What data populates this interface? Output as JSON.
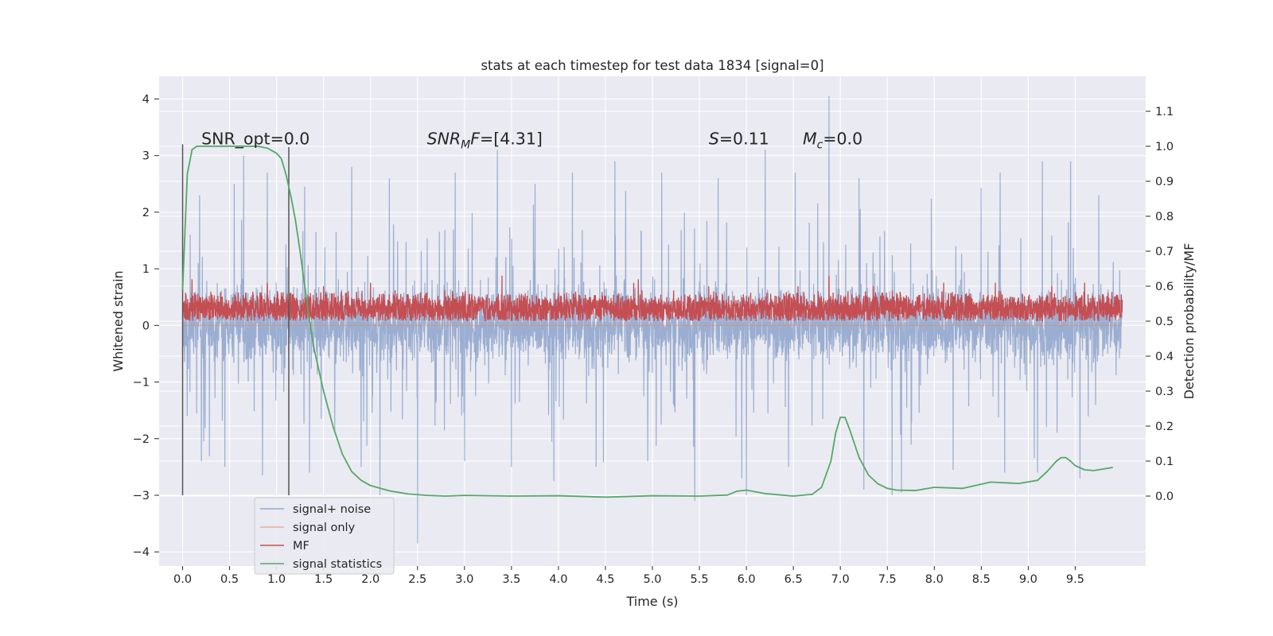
{
  "chart_data": {
    "type": "line",
    "title": "stats at each timestep for test data 1834 [signal=0]",
    "xlabel": "Time (s)",
    "ylabel_left": "Whitened strain",
    "ylabel_right": "Detection probability/MF",
    "xlim": [
      -0.25,
      10.25
    ],
    "ylim_left": [
      -4.25,
      4.4
    ],
    "ylim_right": [
      -0.2,
      1.2
    ],
    "x_ticks": [
      0.0,
      0.5,
      1.0,
      1.5,
      2.0,
      2.5,
      3.0,
      3.5,
      4.0,
      4.5,
      5.0,
      5.5,
      6.0,
      6.5,
      7.0,
      7.5,
      8.0,
      8.5,
      9.0,
      9.5
    ],
    "x_tick_labels": [
      "0.0",
      "0.5",
      "1.0",
      "1.5",
      "2.0",
      "2.5",
      "3.0",
      "3.5",
      "4.0",
      "4.5",
      "5.0",
      "5.5",
      "6.0",
      "6.5",
      "7.0",
      "7.5",
      "8.0",
      "8.5",
      "9.0",
      "9.5"
    ],
    "y_left_ticks": [
      -4,
      -3,
      -2,
      -1,
      0,
      1,
      2,
      3,
      4
    ],
    "y_left_tick_labels": [
      "−4",
      "−3",
      "−2",
      "−1",
      "0",
      "1",
      "2",
      "3",
      "4"
    ],
    "y_right_ticks": [
      0.0,
      0.1,
      0.2,
      0.3,
      0.4,
      0.5,
      0.6,
      0.7,
      0.8,
      0.9,
      1.0,
      1.1
    ],
    "y_right_tick_labels": [
      "0.0",
      "0.1",
      "0.2",
      "0.3",
      "0.4",
      "0.5",
      "0.6",
      "0.7",
      "0.8",
      "0.9",
      "1.0",
      "1.1"
    ],
    "grid": true,
    "legend_position": "lower-left",
    "annotations": [
      {
        "label": "SNR_opt=0.0",
        "x": 0.2,
        "y": 3.2
      },
      {
        "label": "SNR_MF=[4.31]",
        "x": 2.6,
        "y": 3.2
      },
      {
        "label": "S=0.11",
        "x": 5.6,
        "y": 3.2
      },
      {
        "label": "M_c=0.0",
        "x": 6.6,
        "y": 3.2
      }
    ],
    "vertical_markers": [
      {
        "x": 0.0,
        "y_range": [
          -3.0,
          3.2
        ]
      },
      {
        "x": 1.13,
        "y_range": [
          -3.0,
          3.15
        ]
      }
    ],
    "series": [
      {
        "name": "signal+ noise",
        "axis": "left",
        "color": "#4c72b0",
        "typical_range": [
          -1.3,
          1.3
        ],
        "peaks": [
          {
            "x": 0.08,
            "y": 1.6
          },
          {
            "x": 0.18,
            "y": 2.3
          },
          {
            "x": 0.55,
            "y": 2.5
          },
          {
            "x": 0.65,
            "y": 3.0
          },
          {
            "x": 0.9,
            "y": 2.7
          },
          {
            "x": 1.3,
            "y": 2.45
          },
          {
            "x": 1.8,
            "y": 2.8
          },
          {
            "x": 2.2,
            "y": 2.6
          },
          {
            "x": 2.5,
            "y": 2.8
          },
          {
            "x": 2.9,
            "y": 2.7
          },
          {
            "x": 3.35,
            "y": 3.1
          },
          {
            "x": 3.75,
            "y": 2.5
          },
          {
            "x": 4.15,
            "y": 2.7
          },
          {
            "x": 4.6,
            "y": 2.9
          },
          {
            "x": 5.1,
            "y": 2.7
          },
          {
            "x": 5.7,
            "y": 2.6
          },
          {
            "x": 6.2,
            "y": 3.1
          },
          {
            "x": 6.52,
            "y": 2.7
          },
          {
            "x": 6.88,
            "y": 4.05
          },
          {
            "x": 7.2,
            "y": 2.6
          },
          {
            "x": 7.65,
            "y": 2.9
          },
          {
            "x": 8.2,
            "y": 3.0
          },
          {
            "x": 8.7,
            "y": 2.7
          },
          {
            "x": 9.15,
            "y": 2.9
          },
          {
            "x": 9.45,
            "y": 2.9
          },
          {
            "x": 9.75,
            "y": 2.3
          }
        ],
        "troughs": [
          {
            "x": 0.05,
            "y": -1.6
          },
          {
            "x": 0.2,
            "y": -2.4
          },
          {
            "x": 0.45,
            "y": -2.5
          },
          {
            "x": 0.85,
            "y": -2.65
          },
          {
            "x": 1.35,
            "y": -2.6
          },
          {
            "x": 1.9,
            "y": -2.5
          },
          {
            "x": 2.1,
            "y": -3.0
          },
          {
            "x": 2.5,
            "y": -3.85
          },
          {
            "x": 3.0,
            "y": -2.4
          },
          {
            "x": 3.5,
            "y": -2.5
          },
          {
            "x": 3.95,
            "y": -2.75
          },
          {
            "x": 4.4,
            "y": -2.5
          },
          {
            "x": 4.95,
            "y": -2.4
          },
          {
            "x": 5.45,
            "y": -3.1
          },
          {
            "x": 5.95,
            "y": -2.7
          },
          {
            "x": 6.0,
            "y": -3.0
          },
          {
            "x": 6.45,
            "y": -2.5
          },
          {
            "x": 7.25,
            "y": -2.9
          },
          {
            "x": 7.55,
            "y": -3.0
          },
          {
            "x": 7.65,
            "y": -2.95
          },
          {
            "x": 8.2,
            "y": -2.55
          },
          {
            "x": 8.75,
            "y": -2.6
          },
          {
            "x": 9.1,
            "y": -2.6
          },
          {
            "x": 9.55,
            "y": -2.7
          }
        ]
      },
      {
        "name": "signal only",
        "axis": "left",
        "color": "#dd8452",
        "x": [
          0.0,
          10.0
        ],
        "values": [
          0.0,
          0.0
        ]
      },
      {
        "name": "MF",
        "axis": "right",
        "color": "#c44e52",
        "typical_range": [
          0.5,
          0.59
        ],
        "peaks": [
          {
            "x": 0.1,
            "y": 0.62
          },
          {
            "x": 0.9,
            "y": 0.61
          },
          {
            "x": 1.5,
            "y": 0.6
          },
          {
            "x": 2.0,
            "y": 0.61
          },
          {
            "x": 3.4,
            "y": 0.63
          },
          {
            "x": 4.8,
            "y": 0.61
          },
          {
            "x": 4.85,
            "y": 0.62
          },
          {
            "x": 5.6,
            "y": 0.6
          },
          {
            "x": 6.55,
            "y": 0.6
          },
          {
            "x": 6.88,
            "y": 0.63
          },
          {
            "x": 7.35,
            "y": 0.6
          },
          {
            "x": 8.1,
            "y": 0.61
          },
          {
            "x": 8.65,
            "y": 0.61
          },
          {
            "x": 9.25,
            "y": 0.6
          },
          {
            "x": 9.6,
            "y": 0.61
          }
        ]
      },
      {
        "name": "signal statistics",
        "axis": "right",
        "color": "#55a868",
        "x": [
          0.0,
          0.05,
          0.1,
          0.15,
          0.25,
          0.4,
          0.6,
          0.8,
          0.9,
          1.0,
          1.05,
          1.1,
          1.15,
          1.2,
          1.25,
          1.3,
          1.35,
          1.4,
          1.5,
          1.6,
          1.7,
          1.8,
          1.9,
          2.0,
          2.2,
          2.4,
          2.6,
          2.8,
          3.0,
          3.5,
          4.0,
          4.5,
          5.0,
          5.5,
          5.8,
          5.9,
          6.0,
          6.2,
          6.5,
          6.7,
          6.8,
          6.9,
          6.95,
          7.0,
          7.05,
          7.1,
          7.2,
          7.3,
          7.4,
          7.5,
          7.6,
          7.8,
          8.0,
          8.3,
          8.6,
          8.9,
          9.1,
          9.2,
          9.3,
          9.35,
          9.4,
          9.45,
          9.5,
          9.6,
          9.7,
          9.9
        ],
        "values": [
          0.59,
          0.92,
          0.99,
          1.0,
          1.0,
          1.0,
          1.0,
          1.0,
          0.995,
          0.98,
          0.965,
          0.92,
          0.86,
          0.79,
          0.7,
          0.6,
          0.5,
          0.42,
          0.3,
          0.2,
          0.12,
          0.07,
          0.045,
          0.03,
          0.015,
          0.006,
          0.002,
          0.0,
          0.002,
          0.0,
          0.001,
          -0.003,
          0.001,
          0.0,
          0.003,
          0.014,
          0.017,
          0.007,
          0.0,
          0.005,
          0.025,
          0.1,
          0.18,
          0.225,
          0.225,
          0.19,
          0.11,
          0.06,
          0.035,
          0.022,
          0.017,
          0.016,
          0.025,
          0.022,
          0.04,
          0.036,
          0.045,
          0.07,
          0.1,
          0.11,
          0.11,
          0.1,
          0.087,
          0.075,
          0.073,
          0.082
        ]
      }
    ]
  }
}
